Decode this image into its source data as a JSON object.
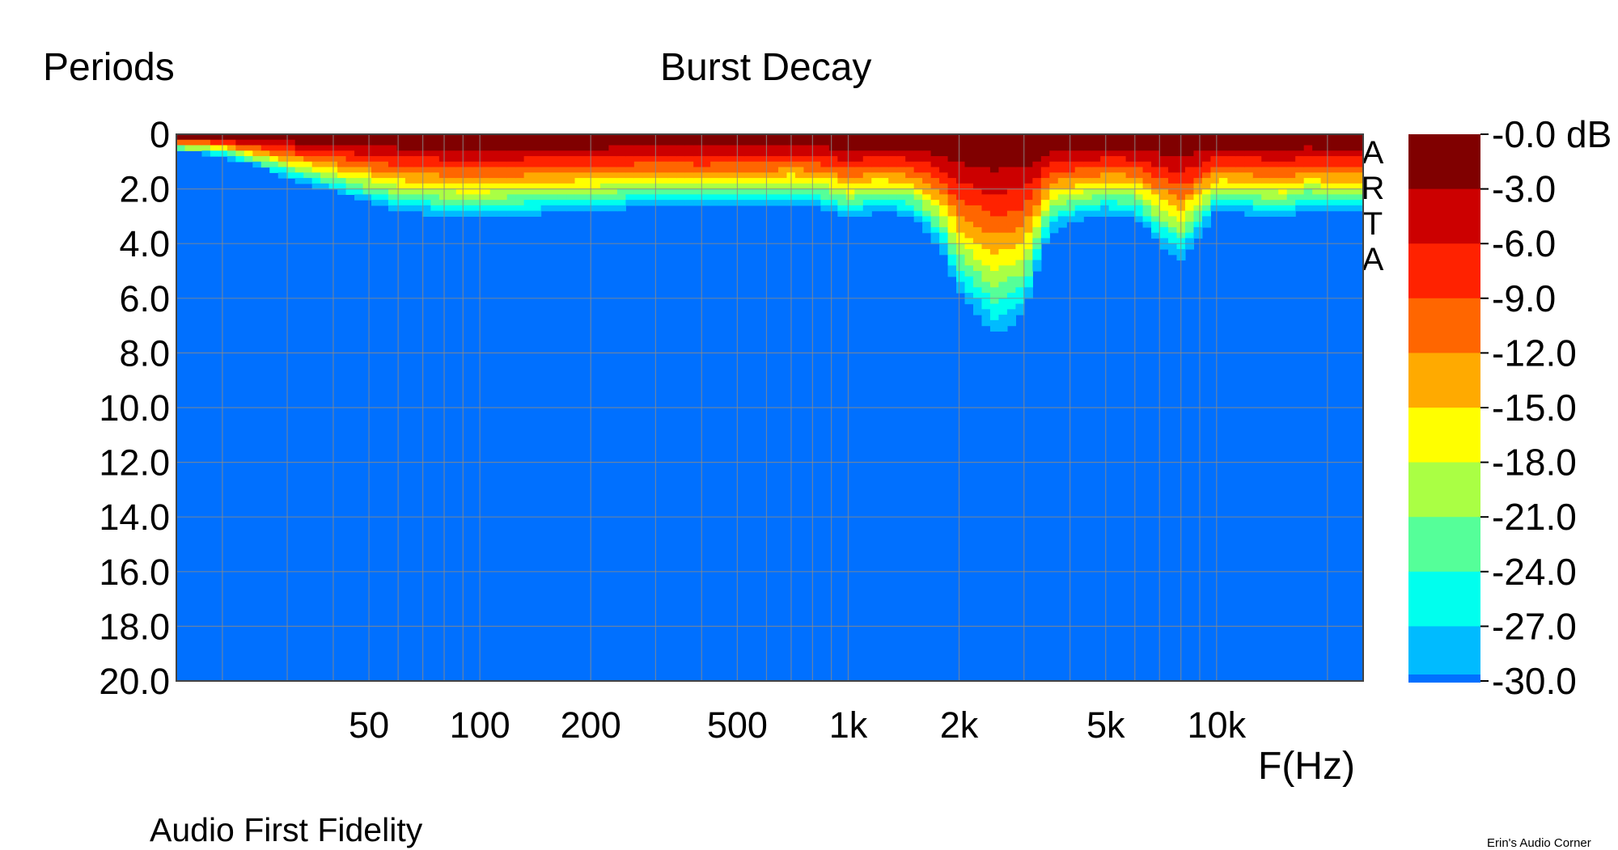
{
  "header": {
    "y_axis_title": "Periods",
    "title": "Burst Decay"
  },
  "footer": {
    "author": "Audio First Fidelity",
    "credit": "Erin's Audio Corner"
  },
  "watermark_letters": [
    "A",
    "R",
    "T",
    "A"
  ],
  "chart_data": {
    "type": "heatmap",
    "title": "Burst Decay",
    "ylabel": "Periods",
    "xlabel": "F(Hz)",
    "x_scale": "log",
    "xlim": [
      15,
      25000
    ],
    "ylim": [
      0,
      20
    ],
    "y_ticks": [
      "0",
      "2.0",
      "4.0",
      "6.0",
      "8.0",
      "10.0",
      "12.0",
      "14.0",
      "16.0",
      "18.0",
      "20.0"
    ],
    "x_ticks": [
      {
        "value": 50,
        "label": "50"
      },
      {
        "value": 100,
        "label": "100"
      },
      {
        "value": 200,
        "label": "200"
      },
      {
        "value": 500,
        "label": "500"
      },
      {
        "value": 1000,
        "label": "1k"
      },
      {
        "value": 2000,
        "label": "2k"
      },
      {
        "value": 5000,
        "label": "5k"
      },
      {
        "value": 10000,
        "label": "10k"
      }
    ],
    "colorbar": {
      "unit": "dB",
      "levels": [
        "-0.0 dB",
        "-3.0",
        "-6.0",
        "-9.0",
        "-12.0",
        "-15.0",
        "-18.0",
        "-21.0",
        "-24.0",
        "-27.0",
        "-30.0"
      ],
      "colors": [
        "#800000",
        "#cc0000",
        "#ff2200",
        "#ff6600",
        "#ffaa00",
        "#ffff00",
        "#aaff44",
        "#55ff99",
        "#00ffee",
        "#00bbff",
        "#0070ff"
      ]
    },
    "decay_profile": {
      "frequency_hz": [
        15,
        20,
        25,
        30,
        40,
        50,
        60,
        70,
        80,
        90,
        100,
        120,
        150,
        200,
        250,
        300,
        400,
        500,
        600,
        700,
        800,
        900,
        1000,
        1200,
        1500,
        1800,
        2000,
        2500,
        3000,
        3500,
        4000,
        5000,
        6000,
        7000,
        8000,
        10000,
        12000,
        15000,
        18000,
        20000
      ],
      "decay_to_minus_30dB_periods": [
        0.6,
        0.8,
        1.2,
        1.6,
        2.1,
        2.5,
        2.8,
        2.9,
        3.0,
        3.1,
        3.1,
        3.0,
        2.9,
        2.8,
        2.7,
        2.6,
        2.7,
        2.6,
        2.6,
        2.5,
        2.6,
        2.8,
        3.1,
        2.8,
        3.0,
        4.2,
        5.8,
        7.3,
        6.6,
        3.6,
        3.2,
        2.9,
        3.0,
        4.0,
        4.6,
        2.8,
        2.9,
        3.1,
        2.7,
        2.9
      ]
    }
  }
}
